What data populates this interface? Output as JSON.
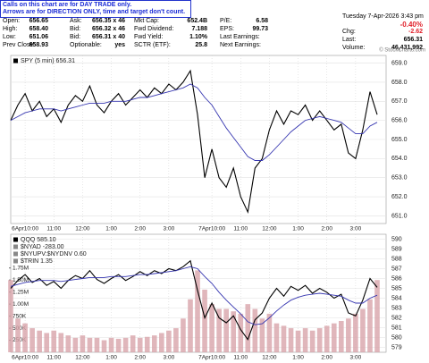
{
  "notice": [
    "Calls on this chart are for DAY TRADE only.",
    "Arrows are for DIRECTION ONLY, time and target don't count."
  ],
  "watermark": "© StockCharts.com",
  "quote": {
    "columns": [
      [
        [
          "Open:",
          "656.65"
        ],
        [
          "High:",
          "658.40"
        ],
        [
          "Low:",
          "651.06"
        ],
        [
          "Prev Close:",
          "658.93"
        ]
      ],
      [
        [
          "Ask:",
          "656.35 x 46"
        ],
        [
          "Bid:",
          "656.32 x 46"
        ],
        [
          "Bid:",
          "656.31 x 40"
        ],
        [
          "Optionable:",
          "yes"
        ]
      ],
      [
        [
          "Mkt Cap:",
          "652.4B"
        ],
        [
          "Fwd Dividend:",
          "7.188"
        ],
        [
          "Fwd Yield:",
          "1.10%"
        ],
        [
          "SCTR (ETF):",
          "25.8"
        ]
      ],
      [
        [
          "P/E:",
          "6.58"
        ],
        [
          "EPS:",
          "99.73"
        ],
        [
          "Last Earnings:"
        ],
        [
          "Next Earnings:"
        ]
      ]
    ],
    "date": "Tuesday  7-Apr-2026  3:43 pm",
    "change_pct": "-0.40%",
    "right": [
      [
        "Chg:",
        "-2.62"
      ],
      [
        "Last:",
        "656.31"
      ],
      [
        "Volume:",
        "46,431,992"
      ]
    ]
  },
  "chart_data": [
    {
      "type": "line",
      "categories": [
        null,
        null,
        "6Apr10:00",
        null,
        null,
        null,
        "11:00",
        null,
        null,
        null,
        "12:00",
        null,
        null,
        null,
        "1:00",
        null,
        null,
        null,
        "2:00",
        null,
        null,
        null,
        "3:00",
        null,
        null,
        null,
        null,
        null,
        "7Apr10:00",
        null,
        null,
        null,
        "11:00",
        null,
        null,
        null,
        "12:00",
        null,
        null,
        null,
        "1:00",
        null,
        null,
        null,
        "2:00",
        null,
        null,
        null,
        "3:00",
        null,
        null,
        null
      ],
      "ylim": [
        650.6,
        659.4
      ],
      "yticks": [
        {
          "value": 651,
          "label": "651.0"
        },
        {
          "value": 652,
          "label": "652.0"
        },
        {
          "value": 653,
          "label": "653.0"
        },
        {
          "value": 654,
          "label": "654.0"
        },
        {
          "value": 655,
          "label": "655.0"
        },
        {
          "value": 656,
          "label": "656.0"
        },
        {
          "value": 657,
          "label": "657.0"
        },
        {
          "value": 658,
          "label": "658.0"
        },
        {
          "value": 659,
          "label": "659.0"
        }
      ],
      "grid": true,
      "series": [
        {
          "name": "SPY (5 min) 656.31",
          "color": "#000000",
          "values": [
            656.0,
            656.8,
            657.4,
            656.5,
            657.0,
            656.2,
            656.6,
            655.9,
            656.8,
            657.3,
            657.0,
            657.8,
            656.8,
            656.4,
            657.0,
            657.4,
            656.8,
            657.2,
            657.6,
            657.2,
            657.7,
            657.4,
            657.9,
            657.6,
            658.0,
            658.6,
            656.3,
            653.0,
            654.5,
            653.0,
            652.5,
            653.5,
            652.0,
            651.2,
            653.5,
            654.0,
            655.5,
            656.5,
            655.8,
            656.5,
            656.3,
            656.8,
            656.0,
            656.5,
            656.0,
            655.5,
            655.8,
            654.3,
            654.0,
            655.5,
            657.5,
            656.3
          ]
        },
        {
          "color": "#3535b0",
          "values": [
            656.0,
            656.2,
            656.4,
            656.5,
            656.6,
            656.6,
            656.6,
            656.5,
            656.6,
            656.7,
            656.8,
            656.9,
            656.9,
            656.9,
            657.0,
            657.0,
            657.0,
            657.1,
            657.2,
            657.2,
            657.3,
            657.4,
            657.5,
            657.6,
            657.7,
            657.9,
            657.7,
            657.2,
            656.8,
            656.2,
            655.6,
            655.1,
            654.6,
            654.1,
            653.9,
            653.9,
            654.2,
            654.6,
            655.0,
            655.4,
            655.7,
            656.0,
            656.1,
            656.2,
            656.1,
            656.0,
            655.9,
            655.6,
            655.3,
            655.3,
            655.7,
            655.9
          ]
        }
      ]
    },
    {
      "type": "line",
      "categories": [
        null,
        null,
        "6Apr10:00",
        null,
        null,
        null,
        "11:00",
        null,
        null,
        null,
        "12:00",
        null,
        null,
        null,
        "1:00",
        null,
        null,
        null,
        "2:00",
        null,
        null,
        null,
        "3:00",
        null,
        null,
        null,
        null,
        null,
        "7Apr10:00",
        null,
        null,
        null,
        "11:00",
        null,
        null,
        null,
        "12:00",
        null,
        null,
        null,
        "1:00",
        null,
        null,
        null,
        "2:00",
        null,
        null,
        null,
        "3:00",
        null,
        null,
        null
      ],
      "legend_notes": [
        "$NYAD -283.00",
        "$NYUPV:$NYDNV 0.60",
        "$TRIN 1.35"
      ],
      "ylim": [
        0,
        2450000
      ],
      "yticks": [
        {
          "value": 250000,
          "label": "250K"
        },
        {
          "value": 500000,
          "label": "500K"
        },
        {
          "value": 750000,
          "label": "750K"
        },
        {
          "value": 1000000,
          "label": "1.00M"
        },
        {
          "value": 1250000,
          "label": "1.25M"
        },
        {
          "value": 1500000,
          "label": "1.50M"
        },
        {
          "value": 1750000,
          "label": "1.75M"
        }
      ],
      "y2lim": [
        578.5,
        590.5
      ],
      "y2ticks": [
        579,
        580,
        581,
        582,
        583,
        584,
        585,
        586,
        587,
        588,
        589,
        590
      ],
      "grid": true,
      "series": [
        {
          "type": "bar",
          "color": "#d8a4aa",
          "values": [
            1500000,
            700000,
            600000,
            500000,
            450000,
            400000,
            450000,
            400000,
            350000,
            300000,
            350000,
            300000,
            300000,
            250000,
            300000,
            280000,
            300000,
            350000,
            300000,
            320000,
            350000,
            400000,
            450000,
            500000,
            700000,
            1100000,
            1700000,
            1300000,
            1000000,
            900000,
            900000,
            850000,
            800000,
            1000000,
            900000,
            700000,
            800000,
            600000,
            550000,
            500000,
            450000,
            500000,
            450000,
            500000,
            550000,
            600000,
            650000,
            700000,
            800000,
            900000,
            1100000,
            1500000
          ]
        },
        {
          "name": "QQQ 585.10",
          "axis": "y2",
          "color": "#000000",
          "values": [
            585.0,
            585.8,
            586.4,
            585.6,
            586.0,
            585.3,
            585.7,
            585.0,
            585.8,
            586.3,
            586.0,
            586.8,
            585.9,
            585.5,
            586.0,
            586.4,
            585.8,
            586.2,
            586.7,
            586.3,
            586.8,
            586.5,
            587.0,
            586.8,
            587.2,
            587.8,
            584.8,
            582.0,
            583.5,
            582.0,
            581.5,
            582.2,
            580.8,
            579.8,
            581.8,
            582.5,
            584.0,
            585.0,
            584.2,
            585.2,
            584.8,
            585.3,
            584.5,
            585.0,
            584.6,
            584.0,
            584.4,
            582.5,
            582.2,
            583.8,
            586.0,
            585.1
          ]
        },
        {
          "axis": "y2",
          "color": "#3535b0",
          "values": [
            585.2,
            585.4,
            585.6,
            585.7,
            585.8,
            585.8,
            585.8,
            585.7,
            585.8,
            585.9,
            586.0,
            586.1,
            586.1,
            586.1,
            586.2,
            586.2,
            586.2,
            586.3,
            586.4,
            586.4,
            586.5,
            586.6,
            586.7,
            586.8,
            587.0,
            587.2,
            587.0,
            586.2,
            585.5,
            584.6,
            583.8,
            583.1,
            582.4,
            581.6,
            581.3,
            581.4,
            582.0,
            582.7,
            583.3,
            583.8,
            584.1,
            584.3,
            584.4,
            584.5,
            584.4,
            584.3,
            584.2,
            583.8,
            583.5,
            583.5,
            584.0,
            584.3
          ]
        }
      ]
    }
  ]
}
